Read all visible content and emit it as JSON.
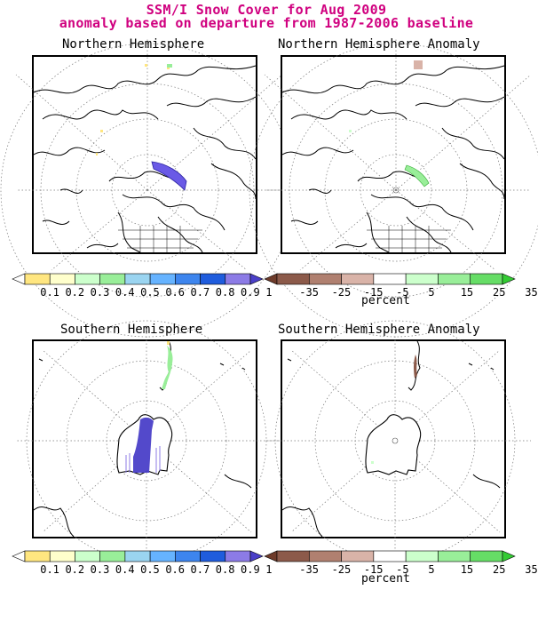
{
  "header": {
    "title_line1": "SSM/I Snow Cover for Aug 2009",
    "title_line2": "anomaly based on departure from 1987-2006 baseline"
  },
  "panels": {
    "nh": {
      "title": "Northern Hemisphere"
    },
    "nh_anom": {
      "title": "Northern Hemisphere Anomaly"
    },
    "sh": {
      "title": "Southern Hemisphere"
    },
    "sh_anom": {
      "title": "Southern Hemisphere Anomaly"
    }
  },
  "colorbars": {
    "snow": {
      "labels": [
        "0.1",
        "0.2",
        "0.3",
        "0.4",
        "0.5",
        "0.6",
        "0.7",
        "0.8",
        "0.9",
        "1"
      ],
      "colors": [
        "#ffffff",
        "#ffe680",
        "#ffffcc",
        "#ccffcc",
        "#99ee99",
        "#9ad4f0",
        "#66b3ff",
        "#3d85ee",
        "#1f5cdd",
        "#8c7be6",
        "#4a3fc8"
      ]
    },
    "anomaly": {
      "labels": [
        "-35",
        "-25",
        "-15",
        "-5",
        "5",
        "15",
        "25",
        "35"
      ],
      "units": "percent",
      "colors": [
        "#6e3b2a",
        "#8c5a4a",
        "#b08070",
        "#d9b3a8",
        "#ffffff",
        "#ccffcc",
        "#99ee99",
        "#66dd66",
        "#33cc33"
      ]
    }
  }
}
